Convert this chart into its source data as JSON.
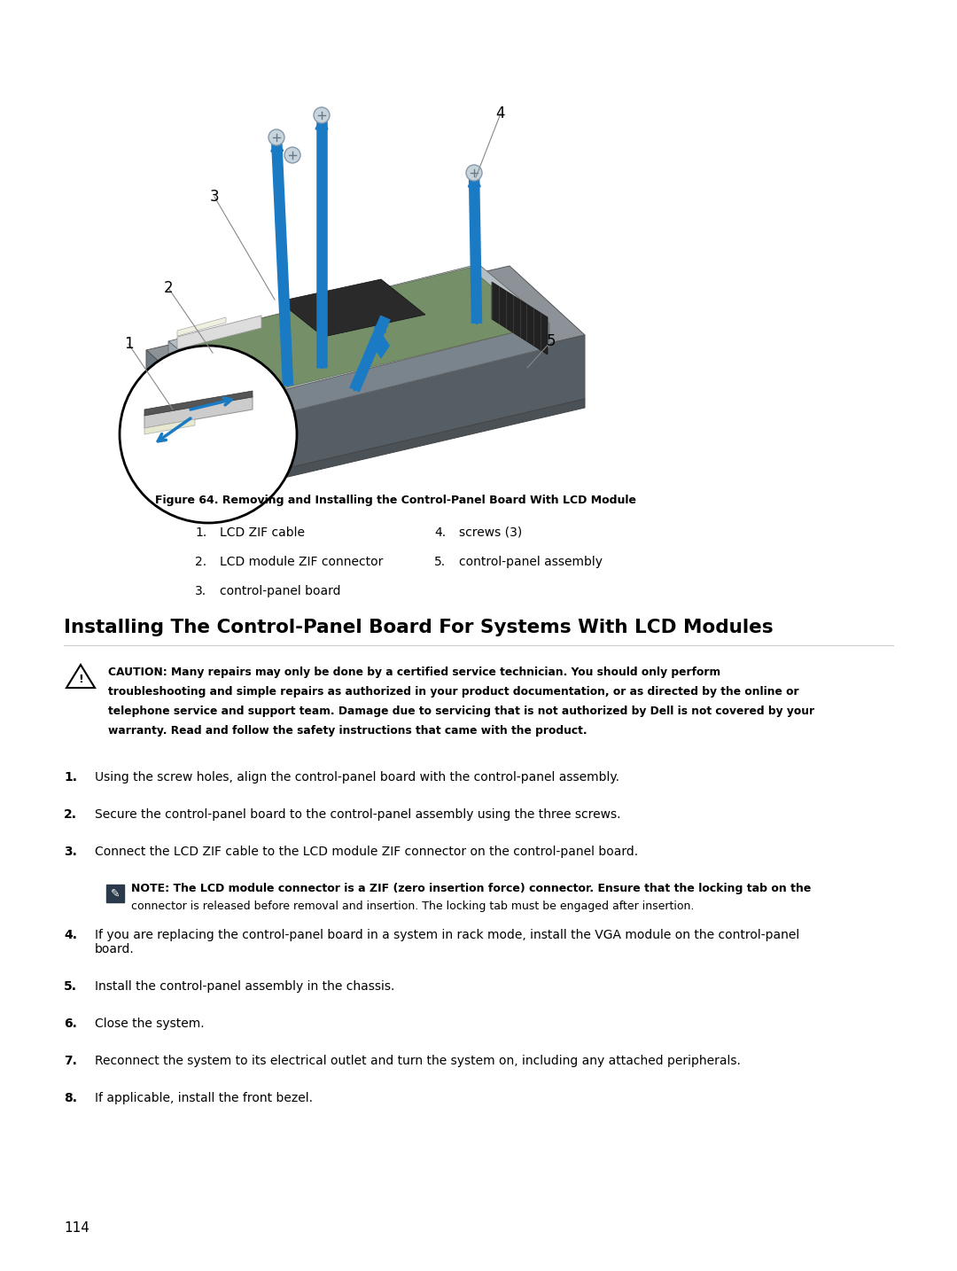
{
  "bg_color": "#ffffff",
  "figure_caption": "Figure 64. Removing and Installing the Control-Panel Board With LCD Module",
  "legend_items_left": [
    [
      "1.",
      "LCD ZIF cable"
    ],
    [
      "2.",
      "LCD module ZIF connector"
    ],
    [
      "3.",
      "control-panel board"
    ]
  ],
  "legend_items_right": [
    [
      "4.",
      "screws (3)"
    ],
    [
      "5.",
      "control-panel assembly"
    ]
  ],
  "section_title": "Installing The Control-Panel Board For Systems With LCD Modules",
  "caution_lines": [
    "CAUTION: Many repairs may only be done by a certified service technician. You should only perform",
    "troubleshooting and simple repairs as authorized in your product documentation, or as directed by the online or",
    "telephone service and support team. Damage due to servicing that is not authorized by Dell is not covered by your",
    "warranty. Read and follow the safety instructions that came with the product."
  ],
  "steps": [
    "Using the screw holes, align the control-panel board with the control-panel assembly.",
    "Secure the control-panel board to the control-panel assembly using the three screws.",
    "Connect the LCD ZIF cable to the LCD module ZIF connector on the control-panel board.",
    "If you are replacing the control-panel board in a system in rack mode, install the VGA module on the control-panel\nboard.",
    "Install the control-panel assembly in the chassis.",
    "Close the system.",
    "Reconnect the system to its electrical outlet and turn the system on, including any attached peripherals.",
    "If applicable, install the front bezel."
  ],
  "note_lines": [
    "NOTE: The LCD module connector is a ZIF (zero insertion force) connector. Ensure that the locking tab on the",
    "connector is released before removal and insertion. The locking tab must be engaged after insertion."
  ],
  "page_number": "114",
  "blue_color": "#1a7bc4",
  "arrow_color": "#1a7bc4",
  "text_color": "#000000",
  "line_color": "#888888"
}
